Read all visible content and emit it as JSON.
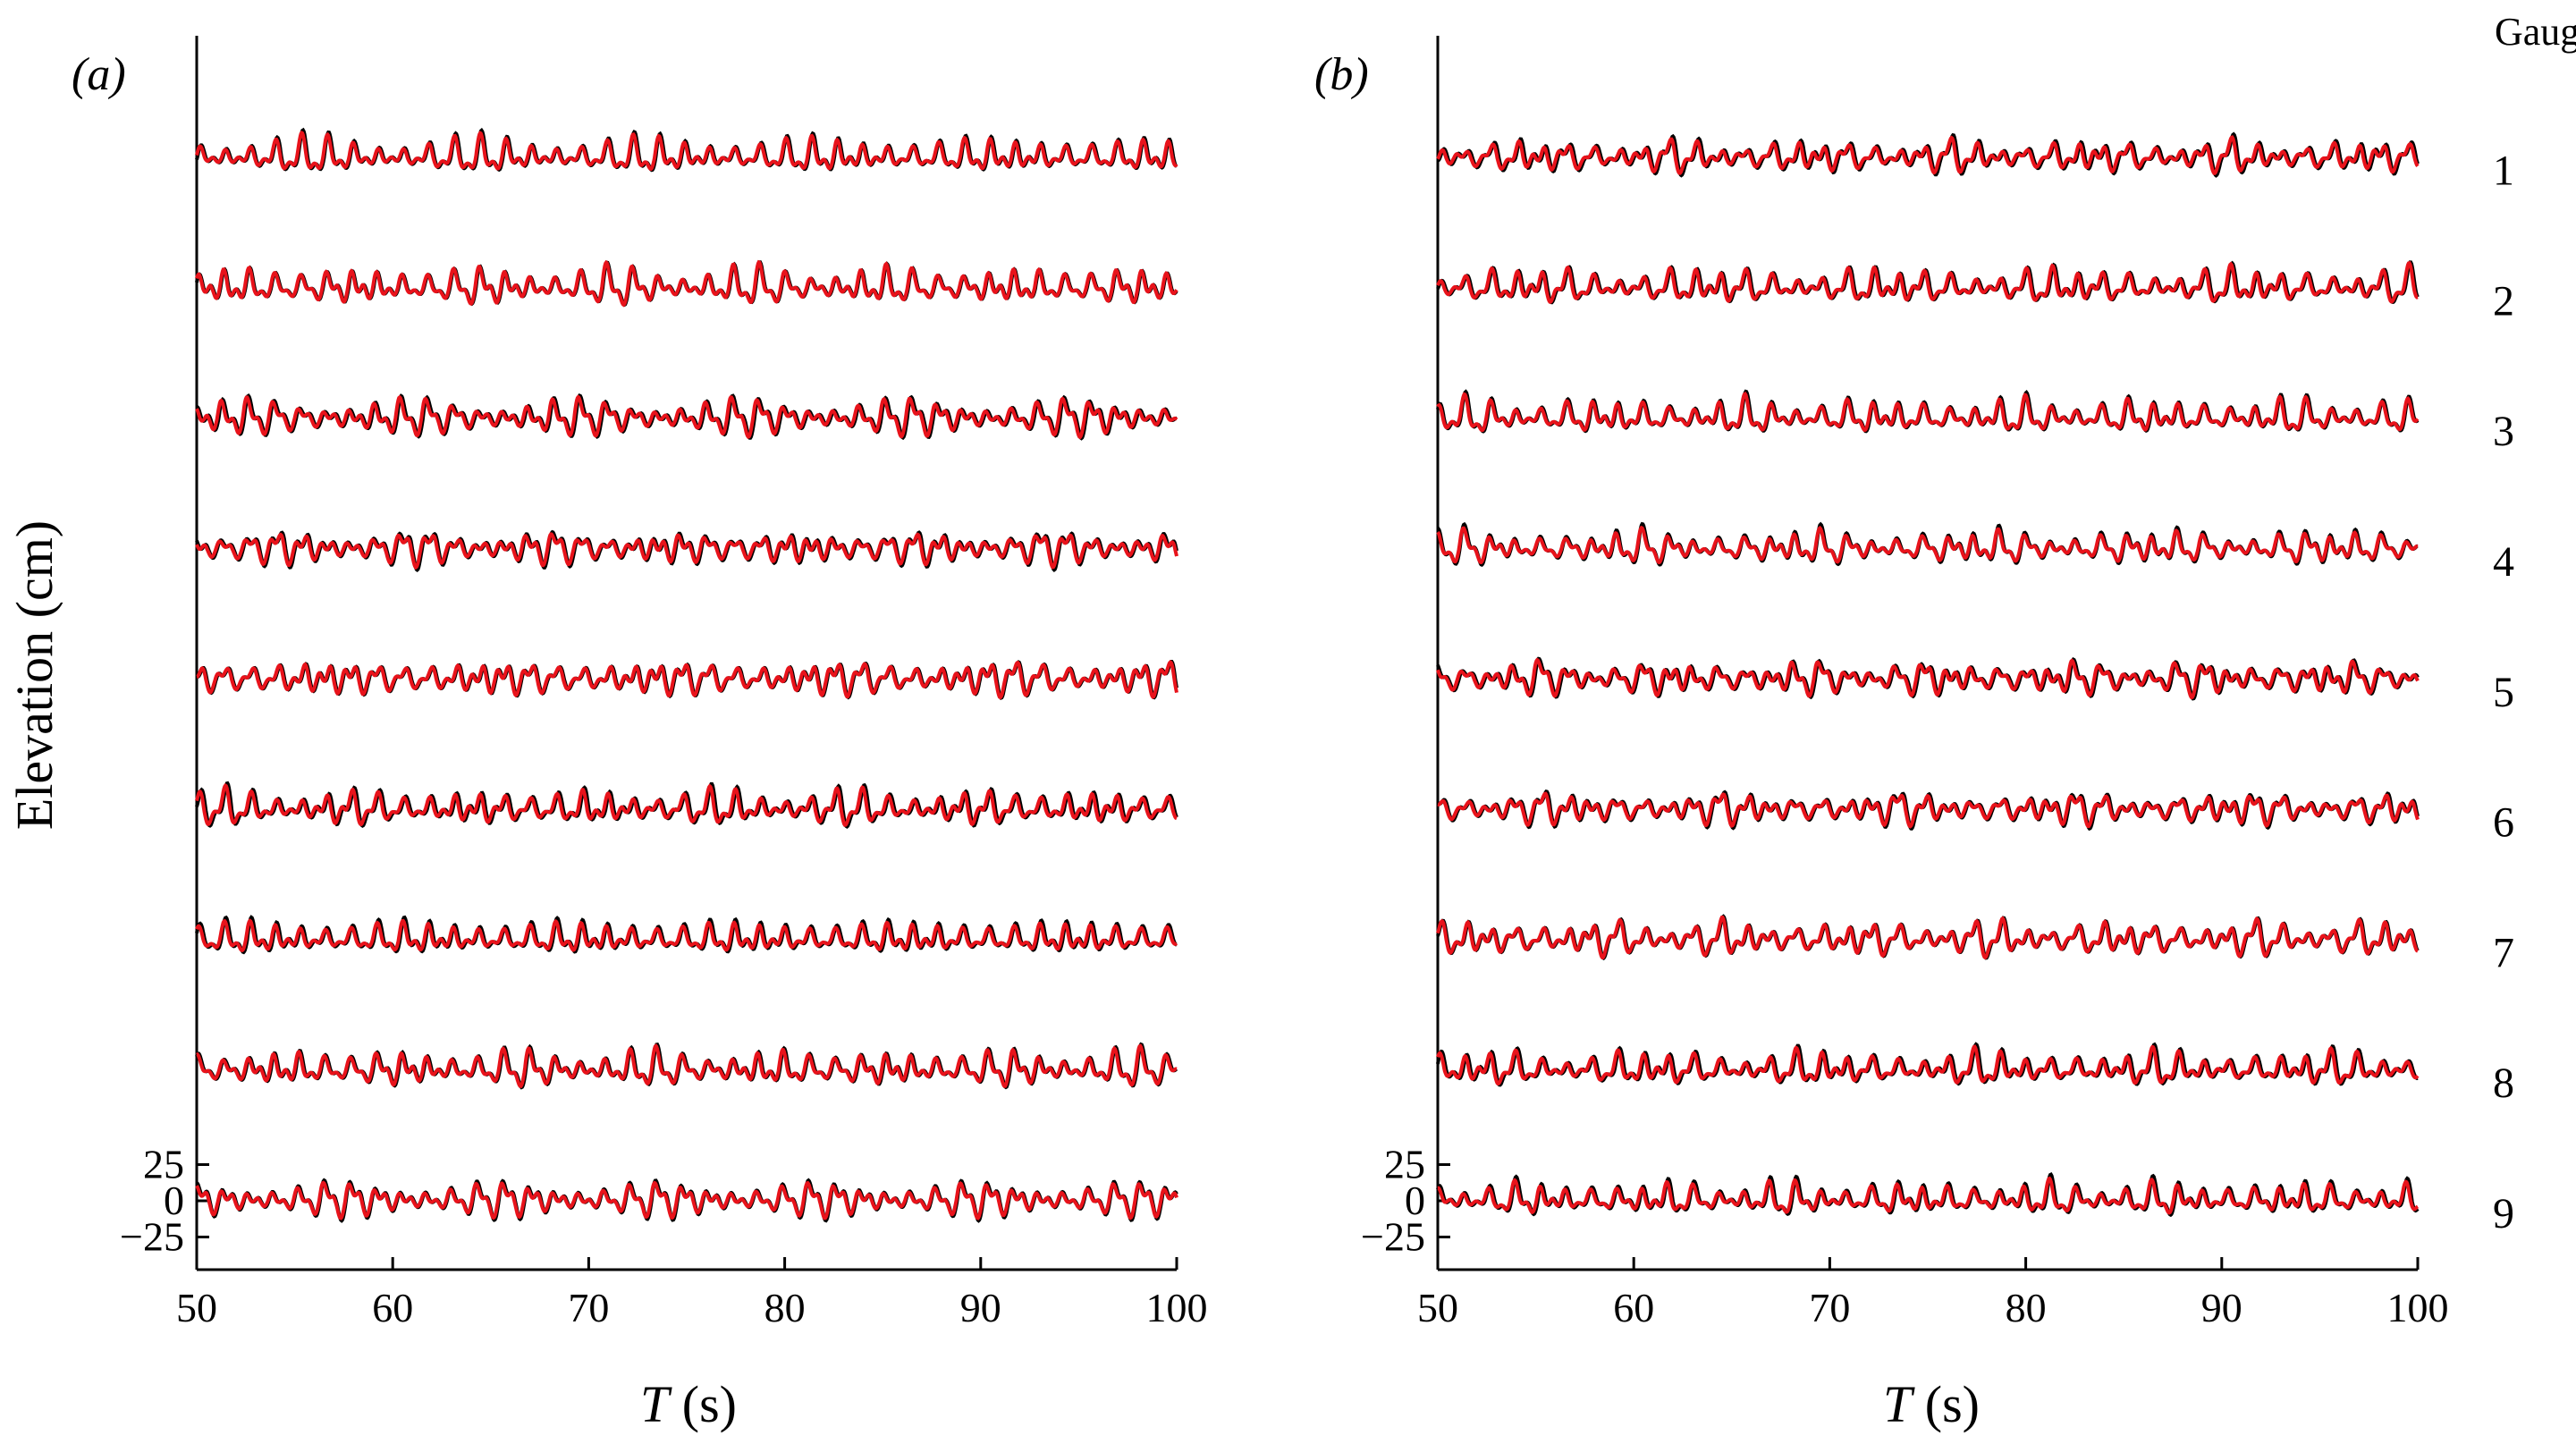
{
  "chart_data": {
    "type": "line",
    "ylabel": "Elevation (cm)",
    "xlabel_symbol": "T",
    "xlabel_unit": " (s)",
    "xlim": [
      50,
      100
    ],
    "xticks": [
      50,
      60,
      70,
      80,
      90,
      100
    ],
    "yticks": [
      {
        "value": 25,
        "label": "25"
      },
      {
        "value": 0,
        "label": "0"
      },
      {
        "value": -25,
        "label": "−25"
      }
    ],
    "gauge_header": "Gauge",
    "gauges": [
      "1",
      "2",
      "3",
      "4",
      "5",
      "6",
      "7",
      "8",
      "9"
    ],
    "gauge_offset_cm": 90,
    "series_colors": {
      "measured": "#000000",
      "simulated": "#e8131b"
    },
    "panels": [
      {
        "label": "(a)",
        "components": [
          {
            "amp": 8.0,
            "period": 1.3
          },
          {
            "amp": 6.0,
            "period": 0.65
          },
          {
            "amp": 3.0,
            "period": 1.55
          }
        ]
      },
      {
        "label": "(b)",
        "components": [
          {
            "amp": 7.5,
            "period": 1.3
          },
          {
            "amp": 5.5,
            "period": 0.65
          },
          {
            "amp": 3.5,
            "period": 1.8
          }
        ]
      }
    ]
  }
}
